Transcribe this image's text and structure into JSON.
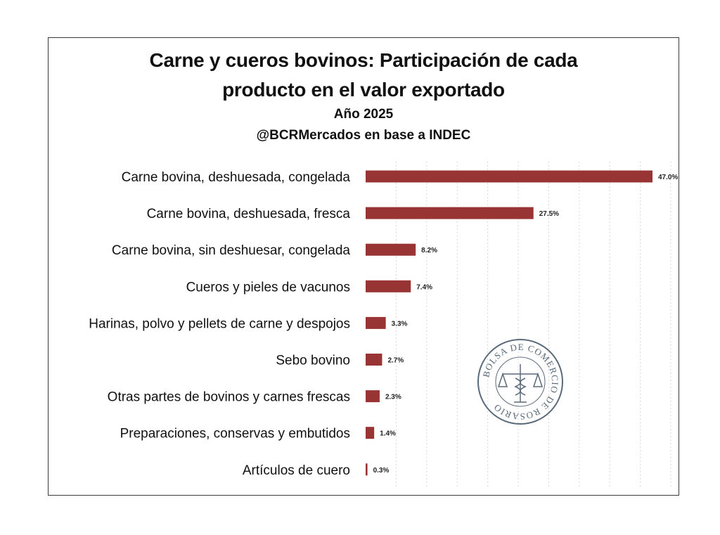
{
  "title_line1": "Carne y cueros bovinos: Participación de cada",
  "title_line2": "producto en el valor exportado",
  "subtitle_year": "Año 2025",
  "subtitle_source": "@BCRMercados en base a INDEC",
  "seal": {
    "text": "BOLSA DE COMERCIO DE ROSARIO",
    "color": "#5a6a7a"
  },
  "colors": {
    "bar": "#983534",
    "grid": "#d8d8d8"
  },
  "chart_data": {
    "type": "bar",
    "orientation": "horizontal",
    "title": "Carne y cueros bovinos: Participación de cada producto en el valor exportado",
    "subtitle": "Año 2025",
    "source": "@BCRMercados en base a INDEC",
    "categories": [
      "Carne bovina, deshuesada, congelada",
      "Carne bovina, deshuesada, fresca",
      "Carne bovina, sin deshuesar, congelada",
      "Cueros y pieles de vacunos",
      "Harinas, polvo y pellets de carne y despojos",
      "Sebo bovino",
      "Otras partes de bovinos y carnes frescas",
      "Preparaciones, conservas y embutidos",
      "Artículos de cuero"
    ],
    "values": [
      47.0,
      27.5,
      8.2,
      7.4,
      3.3,
      2.7,
      2.3,
      1.4,
      0.3
    ],
    "value_labels": [
      "47.0%",
      "27.5%",
      "8.2%",
      "7.4%",
      "3.3%",
      "2.7%",
      "2.3%",
      "1.4%",
      "0.3%"
    ],
    "xlim": [
      0,
      50
    ],
    "grid": true,
    "legend": "none",
    "xlabel": "",
    "ylabel": ""
  }
}
